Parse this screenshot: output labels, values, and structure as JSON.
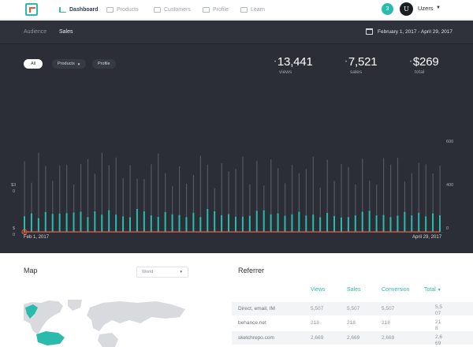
{
  "nav": {
    "items": [
      {
        "label": "Dashboard",
        "active": true
      },
      {
        "label": "Products",
        "active": false
      },
      {
        "label": "Customers",
        "active": false
      },
      {
        "label": "Profile",
        "active": false
      },
      {
        "label": "Learn",
        "active": false
      }
    ],
    "notification_count": "3",
    "avatar_letter": "U",
    "user_name": "Uzers"
  },
  "subnav": {
    "tabs": [
      {
        "label": "Audience",
        "active": false
      },
      {
        "label": "Sales",
        "active": true
      }
    ],
    "date_range": "February 1, 2017 - April 29, 2017"
  },
  "filters": [
    {
      "label": "All",
      "active": true
    },
    {
      "label": "Products",
      "active": false,
      "dropdown": true
    },
    {
      "label": "Profile",
      "active": false
    }
  ],
  "stats": [
    {
      "value": "13,441",
      "label": "views"
    },
    {
      "value": "7,521",
      "label": "sales"
    },
    {
      "value": "$269",
      "label": "total"
    }
  ],
  "colors": {
    "accent": "#2bbbad",
    "line": "#e8573f",
    "bar_ghost": "#545862"
  },
  "chart_data": {
    "type": "bar",
    "x_start_label": "Feb 1, 2017",
    "x_end_label": "April 29, 2017",
    "left_axis_ticks": [
      "$3",
      "0",
      "$",
      "0"
    ],
    "right_axis_ticks": [
      "600",
      "400",
      "0"
    ],
    "right_ylim": [
      0,
      850
    ],
    "series": [
      {
        "values": [
          340,
          237,
          381,
          317,
          245,
          318,
          323,
          228,
          326,
          350,
          279,
          380,
          322,
          358,
          258,
          321,
          256,
          254,
          325,
          377,
          282,
          221,
          315,
          232,
          274,
          366,
          324,
          209,
          330,
          292,
          304,
          362,
          229,
          342,
          223,
          349,
          307,
          234,
          323,
          282,
          302,
          361,
          213,
          347,
          244,
          326,
          312,
          228,
          352,
          247,
          227,
          355,
          324,
          356,
          242,
          282,
          331,
          325,
          281,
          318
        ]
      },
      {
        "values": [
          75,
          89,
          66,
          95,
          86,
          88,
          90,
          93,
          97,
          71,
          98,
          83,
          104,
          83,
          74,
          70,
          110,
          99,
          79,
          72,
          95,
          84,
          81,
          71,
          92,
          71,
          110,
          99,
          80,
          85,
          73,
          73,
          77,
          101,
          104,
          84,
          89,
          77,
          84,
          97,
          78,
          83,
          70,
          91,
          76,
          69,
          71,
          79,
          97,
          101,
          79,
          81,
          71,
          78,
          96,
          79,
          92,
          74,
          89,
          80
        ]
      },
      {
        "values": [
          0,
          0,
          0,
          0,
          0,
          0,
          0,
          0,
          0,
          0,
          0,
          0,
          0,
          0,
          0,
          0,
          0,
          0,
          0,
          0,
          0,
          0,
          0,
          0,
          0,
          0,
          0,
          0,
          0,
          0,
          0,
          0,
          0,
          0,
          0,
          0,
          0,
          0,
          0,
          0,
          0,
          0,
          0,
          0,
          0,
          0,
          0,
          0,
          0,
          0,
          0,
          0,
          0,
          0,
          0,
          0,
          0,
          0,
          0,
          0
        ]
      },
      {
        "values": [
          0,
          0,
          0,
          0,
          0,
          0,
          0,
          0,
          0,
          0,
          0,
          0,
          0,
          0,
          0,
          0,
          0,
          0,
          0,
          0,
          0,
          0,
          0,
          0,
          0,
          0,
          0,
          0,
          0,
          0,
          0,
          0,
          0,
          0,
          0,
          0,
          0,
          0,
          0,
          0,
          0,
          0,
          0,
          0,
          0,
          0,
          0,
          0,
          0,
          0,
          0,
          0,
          0,
          0,
          0,
          0,
          0,
          0,
          0,
          0
        ]
      }
    ]
  },
  "map": {
    "title": "Map",
    "select_value": "World"
  },
  "referrer": {
    "title": "Referrer",
    "columns": [
      "Views",
      "Sales",
      "Conversion",
      "Total"
    ],
    "rows": [
      {
        "name": "Direct, email, IM",
        "views": "5,507",
        "sales": "5,507",
        "conversion": "5,507",
        "total": "5,507"
      },
      {
        "name": "behance.net",
        "views": "218",
        "sales": "218",
        "conversion": "218",
        "total": "218"
      },
      {
        "name": "sketchrepo.com",
        "views": "2,669",
        "sales": "2,669",
        "conversion": "2,669",
        "total": "2,669"
      }
    ]
  }
}
